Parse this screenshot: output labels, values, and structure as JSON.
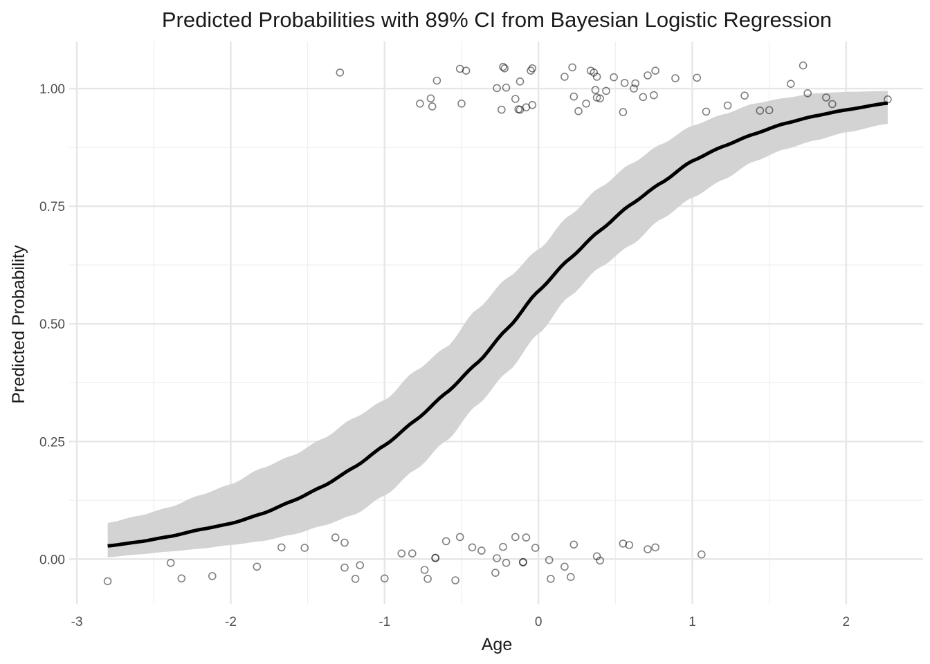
{
  "chart_data": {
    "type": "line",
    "title": "Predicted Probabilities with 89% CI from Bayesian Logistic Regression",
    "xlabel": "Age",
    "ylabel": "Predicted Probability",
    "xlim": [
      -3.05,
      2.5
    ],
    "ylim": [
      -0.095,
      1.1
    ],
    "x_ticks": [
      -3,
      -2,
      -1,
      0,
      1,
      2
    ],
    "x_tick_labels": [
      "-3",
      "-2",
      "-1",
      "0",
      "1",
      "2"
    ],
    "y_ticks": [
      0,
      0.25,
      0.5,
      0.75,
      1
    ],
    "y_tick_labels": [
      "0.00",
      "0.25",
      "0.50",
      "0.75",
      "1.00"
    ],
    "grid": true,
    "legend": "none",
    "model": {
      "intercept": 0.28,
      "slope": 1.38
    },
    "x_range": [
      -2.8,
      2.27
    ],
    "series": [
      {
        "type": "line",
        "x": [
          -2.8,
          -2.6,
          -2.4,
          -2.2,
          -2.0,
          -1.8,
          -1.6,
          -1.4,
          -1.2,
          -1.0,
          -0.8,
          -0.6,
          -0.4,
          -0.2,
          0.0,
          0.2,
          0.4,
          0.6,
          0.8,
          1.0,
          1.2,
          1.4,
          1.6,
          1.8,
          2.0,
          2.27
        ],
        "y": [
          0.029,
          0.038,
          0.05,
          0.066,
          0.074,
          0.093,
          0.12,
          0.149,
          0.188,
          0.234,
          0.285,
          0.34,
          0.4,
          0.48,
          0.57,
          0.64,
          0.7,
          0.755,
          0.8,
          0.852,
          0.88,
          0.905,
          0.928,
          0.943,
          0.955,
          0.97
        ]
      },
      {
        "type": "band",
        "x": [
          -2.8,
          -2.6,
          -2.4,
          -2.2,
          -2.0,
          -1.8,
          -1.6,
          -1.4,
          -1.2,
          -1.0,
          -0.8,
          -0.6,
          -0.4,
          -0.2,
          0.0,
          0.2,
          0.4,
          0.6,
          0.8,
          1.0,
          1.2,
          1.4,
          1.6,
          1.8,
          2.0,
          2.27
        ],
        "lower": [
          0.004,
          0.01,
          0.016,
          0.022,
          0.03,
          0.038,
          0.052,
          0.071,
          0.094,
          0.135,
          0.19,
          0.251,
          0.327,
          0.398,
          0.479,
          0.558,
          0.62,
          0.667,
          0.723,
          0.768,
          0.806,
          0.845,
          0.871,
          0.89,
          0.907,
          0.925
        ],
        "upper": [
          0.077,
          0.092,
          0.11,
          0.136,
          0.159,
          0.193,
          0.22,
          0.256,
          0.3,
          0.338,
          0.4,
          0.45,
          0.531,
          0.598,
          0.658,
          0.73,
          0.79,
          0.84,
          0.882,
          0.921,
          0.945,
          0.968,
          0.98,
          0.99,
          0.993,
          0.995
        ]
      },
      {
        "type": "scatter",
        "points": [
          [
            -2.8,
            -0.047
          ],
          [
            -2.39,
            -0.008
          ],
          [
            -2.32,
            -0.041
          ],
          [
            -2.12,
            -0.036
          ],
          [
            -1.83,
            -0.016
          ],
          [
            -1.67,
            0.025
          ],
          [
            -1.52,
            0.024
          ],
          [
            -1.32,
            0.046
          ],
          [
            -1.26,
            0.035
          ],
          [
            -1.26,
            -0.018
          ],
          [
            -1.19,
            -0.042
          ],
          [
            -1.16,
            -0.013
          ],
          [
            -1.0,
            -0.041
          ],
          [
            -0.89,
            0.012
          ],
          [
            -0.82,
            0.012
          ],
          [
            -0.74,
            -0.023
          ],
          [
            -0.72,
            -0.042
          ],
          [
            -0.67,
            0.003
          ],
          [
            -0.67,
            0.002
          ],
          [
            -0.6,
            0.038
          ],
          [
            -0.54,
            -0.045
          ],
          [
            -0.51,
            0.047
          ],
          [
            -0.43,
            0.025
          ],
          [
            -0.37,
            0.018
          ],
          [
            -0.28,
            -0.029
          ],
          [
            -0.27,
            0.002
          ],
          [
            -0.23,
            0.026
          ],
          [
            -0.21,
            -0.008
          ],
          [
            -0.15,
            0.047
          ],
          [
            -0.1,
            -0.006
          ],
          [
            -0.1,
            -0.007
          ],
          [
            -0.08,
            0.046
          ],
          [
            -0.02,
            0.024
          ],
          [
            0.07,
            -0.002
          ],
          [
            0.08,
            -0.042
          ],
          [
            0.17,
            -0.016
          ],
          [
            0.21,
            -0.038
          ],
          [
            0.23,
            0.031
          ],
          [
            0.38,
            0.006
          ],
          [
            0.4,
            -0.003
          ],
          [
            0.55,
            0.033
          ],
          [
            0.59,
            0.03
          ],
          [
            0.71,
            0.021
          ],
          [
            0.76,
            0.025
          ],
          [
            1.06,
            0.01
          ],
          [
            -1.29,
            1.034
          ],
          [
            -0.77,
            0.968
          ],
          [
            -0.7,
            0.979
          ],
          [
            -0.69,
            0.962
          ],
          [
            -0.66,
            1.017
          ],
          [
            -0.51,
            1.042
          ],
          [
            -0.5,
            0.968
          ],
          [
            -0.47,
            1.038
          ],
          [
            -0.27,
            1.001
          ],
          [
            -0.24,
            0.955
          ],
          [
            -0.23,
            1.046
          ],
          [
            -0.22,
            1.043
          ],
          [
            -0.21,
            1.002
          ],
          [
            -0.15,
            0.978
          ],
          [
            -0.13,
            0.956
          ],
          [
            -0.12,
            0.955
          ],
          [
            -0.12,
            1.015
          ],
          [
            -0.08,
            0.96
          ],
          [
            -0.05,
            1.038
          ],
          [
            -0.04,
            1.043
          ],
          [
            -0.04,
            0.965
          ],
          [
            0.17,
            1.025
          ],
          [
            0.22,
            1.045
          ],
          [
            0.23,
            0.983
          ],
          [
            0.26,
            0.952
          ],
          [
            0.31,
            0.968
          ],
          [
            0.34,
            1.038
          ],
          [
            0.36,
            1.034
          ],
          [
            0.37,
            0.997
          ],
          [
            0.38,
            0.981
          ],
          [
            0.38,
            1.025
          ],
          [
            0.4,
            0.979
          ],
          [
            0.44,
            0.995
          ],
          [
            0.49,
            1.024
          ],
          [
            0.55,
            0.95
          ],
          [
            0.56,
            1.012
          ],
          [
            0.62,
            1.0
          ],
          [
            0.63,
            1.011
          ],
          [
            0.68,
            0.982
          ],
          [
            0.71,
            1.028
          ],
          [
            0.75,
            0.986
          ],
          [
            0.76,
            1.038
          ],
          [
            0.89,
            1.022
          ],
          [
            1.03,
            1.023
          ],
          [
            1.09,
            0.951
          ],
          [
            1.23,
            0.964
          ],
          [
            1.34,
            0.985
          ],
          [
            1.44,
            0.953
          ],
          [
            1.5,
            0.954
          ],
          [
            1.64,
            1.01
          ],
          [
            1.72,
            1.049
          ],
          [
            1.75,
            0.99
          ],
          [
            1.87,
            0.981
          ],
          [
            1.91,
            0.967
          ],
          [
            2.27,
            0.977
          ]
        ]
      }
    ]
  }
}
